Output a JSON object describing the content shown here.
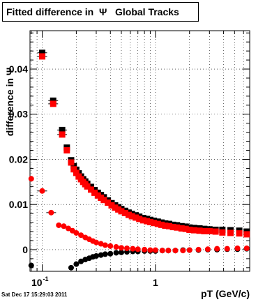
{
  "header": {
    "title": "Fitted difference in  Ψ   Global Tracks",
    "timestamp": "Sat Dec 17 15:29:03 2011"
  },
  "chart_data": {
    "type": "scatter",
    "xlabel": "pT (GeV/c)",
    "ylabel": "difference in Ψ",
    "x_scale": "log",
    "xlim": [
      0.078,
      6.8
    ],
    "ylim": [
      -0.0048,
      0.0485
    ],
    "grid": true,
    "x_ticks": [
      {
        "value": 0.1,
        "label": "10",
        "sup": "-1"
      },
      {
        "value": 1,
        "label": "1",
        "sup": ""
      }
    ],
    "y_ticks": [
      {
        "value": 0,
        "label": "0"
      },
      {
        "value": 0.01,
        "label": "0.01"
      },
      {
        "value": 0.02,
        "label": "0.02"
      },
      {
        "value": 0.03,
        "label": "0.03"
      },
      {
        "value": 0.04,
        "label": "0.04"
      }
    ],
    "colors": {
      "black": "#000000",
      "red": "#ff0000"
    },
    "series": [
      {
        "marker": "square",
        "color": "#000000",
        "points": [
          [
            0.1,
            0.0436
          ],
          [
            0.125,
            0.033
          ],
          [
            0.15,
            0.0265
          ],
          [
            0.165,
            0.0226
          ],
          [
            0.18,
            0.0198
          ],
          [
            0.19,
            0.0185
          ],
          [
            0.2,
            0.0177
          ],
          [
            0.21,
            0.0169
          ],
          [
            0.22,
            0.0162
          ],
          [
            0.23,
            0.0156
          ],
          [
            0.24,
            0.0151
          ],
          [
            0.25,
            0.0146
          ],
          [
            0.27,
            0.0139
          ],
          [
            0.29,
            0.0132
          ],
          [
            0.31,
            0.0126
          ],
          [
            0.33,
            0.0121
          ],
          [
            0.35,
            0.0116
          ],
          [
            0.38,
            0.0109
          ],
          [
            0.41,
            0.0103
          ],
          [
            0.44,
            0.0098
          ],
          [
            0.47,
            0.0094
          ],
          [
            0.5,
            0.009
          ],
          [
            0.54,
            0.0086
          ],
          [
            0.58,
            0.0082
          ],
          [
            0.62,
            0.0079
          ],
          [
            0.67,
            0.0076
          ],
          [
            0.72,
            0.0073
          ],
          [
            0.78,
            0.007
          ],
          [
            0.84,
            0.0068
          ],
          [
            0.9,
            0.0066
          ],
          [
            0.97,
            0.0064
          ],
          [
            1.05,
            0.0062
          ],
          [
            1.13,
            0.006
          ],
          [
            1.22,
            0.0058
          ],
          [
            1.32,
            0.0057
          ],
          [
            1.43,
            0.0055
          ],
          [
            1.55,
            0.0054
          ],
          [
            1.7,
            0.0052
          ],
          [
            1.85,
            0.0051
          ],
          [
            2.0,
            0.0049
          ],
          [
            2.2,
            0.0048
          ],
          [
            2.45,
            0.0047
          ],
          [
            2.7,
            0.0046
          ],
          [
            3.0,
            0.0045
          ],
          [
            3.4,
            0.0044
          ],
          [
            3.9,
            0.0044
          ],
          [
            4.6,
            0.0043
          ],
          [
            5.5,
            0.0042
          ],
          [
            6.4,
            0.004
          ]
        ]
      },
      {
        "marker": "square",
        "color": "#ff0000",
        "points": [
          [
            0.1,
            0.0428
          ],
          [
            0.125,
            0.0323
          ],
          [
            0.15,
            0.0255
          ],
          [
            0.165,
            0.022
          ],
          [
            0.18,
            0.0193
          ],
          [
            0.19,
            0.0178
          ],
          [
            0.2,
            0.017
          ],
          [
            0.21,
            0.0162
          ],
          [
            0.22,
            0.0156
          ],
          [
            0.23,
            0.015
          ],
          [
            0.24,
            0.0145
          ],
          [
            0.25,
            0.014
          ],
          [
            0.27,
            0.0133
          ],
          [
            0.29,
            0.0126
          ],
          [
            0.31,
            0.012
          ],
          [
            0.33,
            0.0115
          ],
          [
            0.35,
            0.011
          ],
          [
            0.38,
            0.0104
          ],
          [
            0.41,
            0.0098
          ],
          [
            0.44,
            0.0093
          ],
          [
            0.47,
            0.0089
          ],
          [
            0.5,
            0.0085
          ],
          [
            0.54,
            0.0081
          ],
          [
            0.58,
            0.0077
          ],
          [
            0.62,
            0.0074
          ],
          [
            0.67,
            0.0071
          ],
          [
            0.72,
            0.0068
          ],
          [
            0.78,
            0.0065
          ],
          [
            0.84,
            0.0063
          ],
          [
            0.9,
            0.0061
          ],
          [
            0.97,
            0.0059
          ],
          [
            1.05,
            0.0057
          ],
          [
            1.13,
            0.0055
          ],
          [
            1.22,
            0.0053
          ],
          [
            1.32,
            0.0052
          ],
          [
            1.43,
            0.005
          ],
          [
            1.55,
            0.0049
          ],
          [
            1.7,
            0.0047
          ],
          [
            1.85,
            0.0046
          ],
          [
            2.0,
            0.0044
          ],
          [
            2.2,
            0.0043
          ],
          [
            2.45,
            0.0042
          ],
          [
            2.7,
            0.0041
          ],
          [
            3.0,
            0.0041
          ],
          [
            3.4,
            0.004
          ],
          [
            3.9,
            0.0038
          ],
          [
            4.6,
            0.0037
          ],
          [
            5.5,
            0.0036
          ],
          [
            6.4,
            0.0034
          ]
        ]
      },
      {
        "marker": "circle",
        "color": "#000000",
        "points": [
          [
            0.08,
            -0.0035
          ],
          [
            0.18,
            -0.004
          ],
          [
            0.2,
            -0.0032
          ],
          [
            0.22,
            -0.0026
          ],
          [
            0.24,
            -0.0022
          ],
          [
            0.26,
            -0.0019
          ],
          [
            0.28,
            -0.0016
          ],
          [
            0.3,
            -0.0014
          ],
          [
            0.33,
            -0.0012
          ],
          [
            0.36,
            -0.001
          ],
          [
            0.4,
            -0.0009
          ],
          [
            0.45,
            -0.0007
          ],
          [
            0.5,
            -0.0006
          ],
          [
            0.56,
            -0.0005
          ],
          [
            0.63,
            -0.0004
          ],
          [
            0.7,
            -0.0004
          ],
          [
            0.8,
            -0.0003
          ],
          [
            0.9,
            -0.0003
          ],
          [
            1.0,
            -0.0003
          ],
          [
            1.15,
            -0.0002
          ],
          [
            1.3,
            -0.0002
          ],
          [
            1.5,
            -0.0002
          ],
          [
            1.75,
            -0.0001
          ],
          [
            2.0,
            -0.0001
          ],
          [
            2.4,
            -0.0001
          ],
          [
            2.9,
            0.0
          ],
          [
            3.5,
            0.0
          ],
          [
            4.3,
            0.0001
          ],
          [
            5.3,
            0.0001
          ],
          [
            6.4,
            0.0002
          ]
        ]
      },
      {
        "marker": "circle",
        "color": "#ff0000",
        "points": [
          [
            0.08,
            0.0157
          ],
          [
            0.1,
            0.013
          ],
          [
            0.12,
            0.0082
          ],
          [
            0.14,
            0.0054
          ],
          [
            0.155,
            0.0052
          ],
          [
            0.17,
            0.0047
          ],
          [
            0.185,
            0.0042
          ],
          [
            0.2,
            0.0037
          ],
          [
            0.22,
            0.0032
          ],
          [
            0.24,
            0.0027
          ],
          [
            0.26,
            0.0023
          ],
          [
            0.28,
            0.0019
          ],
          [
            0.3,
            0.0016
          ],
          [
            0.33,
            0.0013
          ],
          [
            0.36,
            0.001
          ],
          [
            0.4,
            0.0008
          ],
          [
            0.45,
            0.0006
          ],
          [
            0.5,
            0.0004
          ],
          [
            0.56,
            0.0003
          ],
          [
            0.63,
            0.0002
          ],
          [
            0.7,
            0.0001
          ],
          [
            0.8,
            0.0
          ],
          [
            0.9,
            -0.0001
          ],
          [
            1.0,
            -0.0001
          ],
          [
            1.15,
            -0.0002
          ],
          [
            1.3,
            -0.0002
          ],
          [
            1.5,
            -0.0002
          ],
          [
            1.75,
            -0.0002
          ],
          [
            2.0,
            -0.0001
          ],
          [
            2.4,
            0.0
          ],
          [
            2.9,
            0.0001
          ],
          [
            3.5,
            0.0002
          ],
          [
            4.3,
            0.0002
          ],
          [
            5.3,
            0.0003
          ],
          [
            6.4,
            0.0003
          ]
        ]
      }
    ]
  }
}
